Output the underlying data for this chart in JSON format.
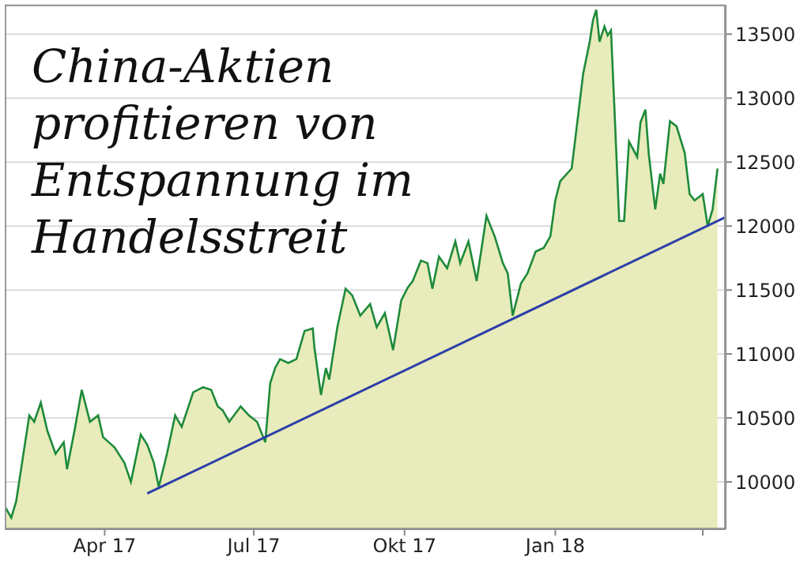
{
  "chart_data": {
    "type": "area",
    "title": "China-Aktien profitieren von Entspannung im Handelsstreit",
    "x": [
      "2017-01-30",
      "2017-02-03",
      "2017-02-06",
      "2017-02-11",
      "2017-02-14",
      "2017-02-17",
      "2017-02-21",
      "2017-02-25",
      "2017-03-02",
      "2017-03-07",
      "2017-03-09",
      "2017-03-14",
      "2017-03-18",
      "2017-03-23",
      "2017-03-28",
      "2017-03-31",
      "2017-04-07",
      "2017-04-13",
      "2017-04-17",
      "2017-04-23",
      "2017-04-27",
      "2017-05-01",
      "2017-05-04",
      "2017-05-09",
      "2017-05-14",
      "2017-05-18",
      "2017-05-25",
      "2017-05-31",
      "2017-06-05",
      "2017-06-09",
      "2017-06-12",
      "2017-06-16",
      "2017-06-23",
      "2017-06-28",
      "2017-07-03",
      "2017-07-08",
      "2017-07-11",
      "2017-07-14",
      "2017-07-17",
      "2017-07-22",
      "2017-07-27",
      "2017-08-01",
      "2017-08-06",
      "2017-08-07",
      "2017-08-11",
      "2017-08-14",
      "2017-08-16",
      "2017-08-21",
      "2017-08-26",
      "2017-08-30",
      "2017-09-04",
      "2017-09-10",
      "2017-09-14",
      "2017-09-19",
      "2017-09-24",
      "2017-09-29",
      "2017-10-03",
      "2017-10-06",
      "2017-10-11",
      "2017-10-15",
      "2017-10-18",
      "2017-10-22",
      "2017-10-27",
      "2017-11-01",
      "2017-11-04",
      "2017-11-09",
      "2017-11-14",
      "2017-11-20",
      "2017-11-25",
      "2017-11-30",
      "2017-12-03",
      "2017-12-06",
      "2017-12-11",
      "2017-12-15",
      "2017-12-20",
      "2017-12-25",
      "2017-12-29",
      "2018-01-01",
      "2018-01-04",
      "2018-01-11",
      "2018-01-15",
      "2018-01-18",
      "2018-01-22",
      "2018-01-24",
      "2018-01-26",
      "2018-01-28",
      "2018-01-31",
      "2018-02-02",
      "2018-02-04",
      "2018-02-06",
      "2018-02-09",
      "2018-02-12",
      "2018-02-15",
      "2018-02-20",
      "2018-02-22",
      "2018-02-25",
      "2018-02-27",
      "2018-03-03",
      "2018-03-06",
      "2018-03-08",
      "2018-03-12",
      "2018-03-16",
      "2018-03-21",
      "2018-03-24",
      "2018-03-27",
      "2018-04-01",
      "2018-04-04",
      "2018-04-07",
      "2018-04-10"
    ],
    "series": [
      {
        "color": "#1e8a3a",
        "values": [
          9810,
          9720,
          9850,
          10270,
          10520,
          10470,
          10620,
          10400,
          10220,
          10310,
          10100,
          10430,
          10720,
          10470,
          10520,
          10350,
          10270,
          10150,
          10000,
          10370,
          10290,
          10150,
          9960,
          10220,
          10520,
          10430,
          10700,
          10740,
          10720,
          10590,
          10560,
          10470,
          10590,
          10520,
          10470,
          10310,
          10770,
          10890,
          10960,
          10930,
          10960,
          11180,
          11200,
          11050,
          10680,
          10890,
          10800,
          11210,
          11510,
          11460,
          11300,
          11390,
          11210,
          11320,
          11030,
          11420,
          11520,
          11570,
          11730,
          11710,
          11510,
          11760,
          11670,
          11880,
          11710,
          11880,
          11570,
          12080,
          11920,
          11710,
          11630,
          11300,
          11550,
          11630,
          11800,
          11830,
          11920,
          12200,
          12350,
          12450,
          12870,
          13190,
          13440,
          13610,
          13690,
          13440,
          13560,
          13490,
          13530,
          12950,
          12040,
          12040,
          12660,
          12540,
          12810,
          12910,
          12570,
          12130,
          12410,
          12330,
          12820,
          12780,
          12570,
          12250,
          12200,
          12250,
          12000,
          12130,
          12450
        ]
      },
      {
        "type": "line",
        "color": "#2b3fa8",
        "x": [
          "2017-04-27",
          "2018-04-15"
        ],
        "values": [
          9910,
          12070
        ]
      }
    ],
    "xlim": [
      "2017-01-30",
      "2018-04-15"
    ],
    "xticks": [
      {
        "value": "2017-04-01",
        "label": "Apr 17"
      },
      {
        "value": "2017-07-01",
        "label": "Jul 17"
      },
      {
        "value": "2017-10-01",
        "label": "Okt 17"
      },
      {
        "value": "2018-01-01",
        "label": "Jan 18"
      },
      {
        "value": "2018-04-01",
        "label": null
      }
    ],
    "ylim": [
      9630,
      13730
    ],
    "yticks": [
      10000,
      10500,
      11000,
      11500,
      12000,
      12500,
      13000,
      13500
    ],
    "grid": "y",
    "legend": false
  }
}
